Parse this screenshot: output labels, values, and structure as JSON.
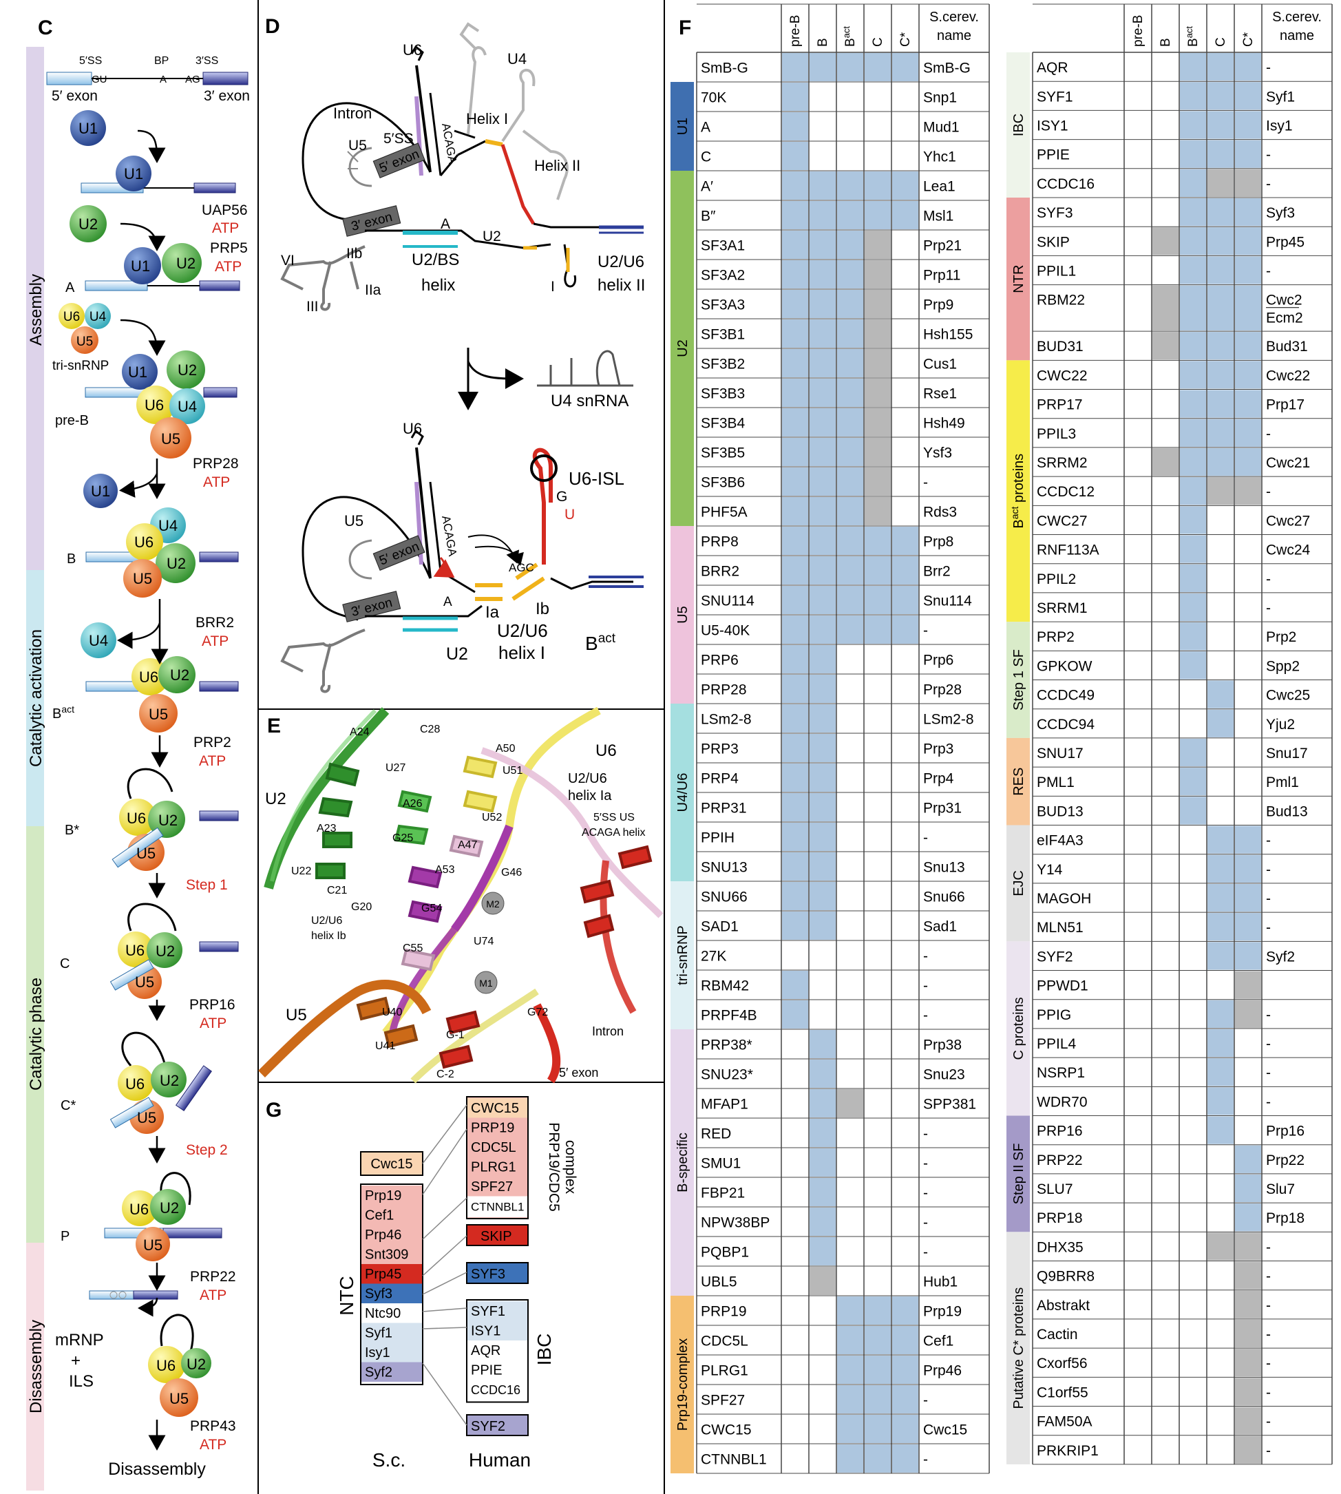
{
  "colors": {
    "blue": "#adc6df",
    "gray": "#b8b8b8",
    "red_text": "#d42a20",
    "u1": "#3a5fae",
    "u2": "#52b04c",
    "u4": "#58c2d0",
    "u5": "#f07a3a",
    "u6": "#f2e33a"
  },
  "panel_c": {
    "letter": "C",
    "header": {
      "ss5": "5′SS",
      "bp": "BP",
      "ss3": "3′SS",
      "gu": "GU",
      "a": "A",
      "ag": "AG",
      "exon5": "5′ exon",
      "exon3": "3′ exon"
    },
    "phases": [
      "Assembly",
      "Catalytic activation",
      "Catalytic phase",
      "Disassembly"
    ],
    "complexes": [
      "A",
      "tri-snRNP",
      "pre-B",
      "B",
      "B^act",
      "B*",
      "C",
      "C*",
      "P"
    ],
    "factors": [
      {
        "name": "UAP56",
        "atp": "ATP"
      },
      {
        "name": "PRP5",
        "atp": "ATP"
      },
      {
        "name": "PRP28",
        "atp": "ATP"
      },
      {
        "name": "BRR2",
        "atp": "ATP"
      },
      {
        "name": "PRP2",
        "atp": "ATP"
      },
      {
        "name": "PRP16",
        "atp": "ATP"
      },
      {
        "name": "PRP22",
        "atp": "ATP"
      },
      {
        "name": "PRP43",
        "atp": "ATP"
      }
    ],
    "steps": [
      "Step 1",
      "Step 2"
    ],
    "products": [
      "mRNP",
      "+",
      "ILS"
    ],
    "final": "Disassembly",
    "snrnps": {
      "u1": "U1",
      "u2": "U2",
      "u4": "U4",
      "u5": "U5",
      "u6": "U6"
    }
  },
  "panel_d": {
    "letter": "D",
    "labels": {
      "u6": "U6",
      "u4": "U4",
      "intron": "Intron",
      "helix1": "Helix I",
      "helix2": "Helix II",
      "ss5": "5′SS",
      "u5": "U5",
      "exon5": "5′ exon",
      "acaga": "ACAGA",
      "exon3": "3′ exon",
      "a": "A",
      "u2": "U2",
      "vi": "VI",
      "iib": "IIb",
      "iia": "IIa",
      "iii": "III",
      "i": "I",
      "u2bs": "U2/BS",
      "helix": "helix",
      "u2u6": "U2/U6",
      "helix_ii": "helix II",
      "u4snrna": "U4 snRNA",
      "u6isl": "U6-ISL",
      "g": "G",
      "u": "U",
      "ia": "Ia",
      "ib": "Ib",
      "helix_i": "helix I",
      "bact": "B",
      "bact_sup": "act",
      "agc": "AGC"
    }
  },
  "panel_e": {
    "letter": "E",
    "labels": [
      "A24",
      "C28",
      "A50",
      "U27",
      "U51",
      "A26",
      "U52",
      "A47",
      "G25",
      "A23",
      "A53",
      "G46",
      "U22",
      "C21",
      "G20",
      "G54",
      "M2",
      "C55",
      "U74",
      "M1",
      "U40",
      "G72",
      "U41",
      "G-1",
      "C-2"
    ],
    "names": {
      "u6": "U6",
      "u2u6a": "U2/U6",
      "helix_ia": "helix Ia",
      "ss5": "5′SS US",
      "acaga": "ACAGA helix",
      "u2": "U2",
      "u2u6b": "U2/U6",
      "helix_ib": "helix Ib",
      "u5": "U5",
      "intron": "Intron",
      "exon5": "5′ exon"
    }
  },
  "panel_g": {
    "letter": "G",
    "cwc15": "Cwc15",
    "ntc": "NTC",
    "ibc": "IBC",
    "sc_list": [
      "Prp19",
      "Cef1",
      "Prp46",
      "Snt309",
      "Prp45",
      "Syf3",
      "Ntc90",
      "Syf1",
      "Isy1",
      "Syf2"
    ],
    "human_complex": [
      "CWC15",
      "PRP19",
      "CDC5L",
      "PLRG1",
      "SPF27",
      "CTNNBL1"
    ],
    "complex_label_1": "PRP19/CDC5",
    "complex_label_2": "complex",
    "skip": "SKIP",
    "syf3": "SYF3",
    "ibc_list": [
      "SYF1",
      "ISY1",
      "AQR",
      "PPIE",
      "CCDC16"
    ],
    "syf2": "SYF2",
    "sc": "S.c.",
    "human": "Human"
  },
  "panel_f": {
    "letter": "F",
    "col_headers": [
      "pre-B",
      "B",
      "B^act",
      "C",
      "C*"
    ],
    "sc_header": [
      "S.cerev.",
      "name"
    ],
    "left": {
      "groups": [
        {
          "name": "U1",
          "color": "#3f6fb0",
          "start": 1,
          "end": 3
        },
        {
          "name": "U2",
          "color": "#8fc15c",
          "start": 4,
          "end": 15
        },
        {
          "name": "U5",
          "color": "#eec3dc",
          "start": 16,
          "end": 21
        },
        {
          "name": "U4/U6",
          "color": "#a5dfe0",
          "start": 22,
          "end": 27
        },
        {
          "name": "tri-snRNP",
          "color": "#dff0f4",
          "start": 28,
          "end": 32
        },
        {
          "name": "B-specific",
          "color": "#e6d7ec",
          "start": 33,
          "end": 41
        },
        {
          "name": "Prp19-complex",
          "color": "#f5bf70",
          "start": 42,
          "end": 47
        }
      ],
      "rows": [
        {
          "name": "SmB-G",
          "sc": "SmB-G",
          "cells": "bbbbb"
        },
        {
          "name": "70K",
          "sc": "Snp1",
          "cells": "b...."
        },
        {
          "name": "A",
          "sc": "Mud1",
          "cells": "b...."
        },
        {
          "name": "C",
          "sc": "Yhc1",
          "cells": "b...."
        },
        {
          "name": "A′",
          "sc": "Lea1",
          "cells": "bbbbb"
        },
        {
          "name": "B″",
          "sc": "Msl1",
          "cells": "bbbbb"
        },
        {
          "name": "SF3A1",
          "sc": "Prp21",
          "cells": "bbbg."
        },
        {
          "name": "SF3A2",
          "sc": "Prp11",
          "cells": "bbbg."
        },
        {
          "name": "SF3A3",
          "sc": "Prp9",
          "cells": "bbbg."
        },
        {
          "name": "SF3B1",
          "sc": "Hsh155",
          "cells": "bbbg."
        },
        {
          "name": "SF3B2",
          "sc": "Cus1",
          "cells": "bbbg."
        },
        {
          "name": "SF3B3",
          "sc": "Rse1",
          "cells": "bbbg."
        },
        {
          "name": "SF3B4",
          "sc": "Hsh49",
          "cells": "bbbg."
        },
        {
          "name": "SF3B5",
          "sc": "Ysf3",
          "cells": "bbbg."
        },
        {
          "name": "SF3B6",
          "sc": "-",
          "cells": "bbbg."
        },
        {
          "name": "PHF5A",
          "sc": "Rds3",
          "cells": "bbbg."
        },
        {
          "name": "PRP8",
          "sc": "Prp8",
          "cells": "bbbbb"
        },
        {
          "name": "BRR2",
          "sc": "Brr2",
          "cells": "bbbbb"
        },
        {
          "name": "SNU114",
          "sc": "Snu114",
          "cells": "bbbbb"
        },
        {
          "name": "U5-40K",
          "sc": "-",
          "cells": "bbbbb"
        },
        {
          "name": "PRP6",
          "sc": "Prp6",
          "cells": "bb..."
        },
        {
          "name": "PRP28",
          "sc": "Prp28",
          "cells": "bb..."
        },
        {
          "name": "LSm2-8",
          "sc": "LSm2-8",
          "cells": "bb..."
        },
        {
          "name": "PRP3",
          "sc": "Prp3",
          "cells": "bb..."
        },
        {
          "name": "PRP4",
          "sc": "Prp4",
          "cells": "bb..."
        },
        {
          "name": "PRP31",
          "sc": "Prp31",
          "cells": "bb..."
        },
        {
          "name": "PPIH",
          "sc": "-",
          "cells": "bb..."
        },
        {
          "name": "SNU13",
          "sc": "Snu13",
          "cells": "bb..."
        },
        {
          "name": "SNU66",
          "sc": "Snu66",
          "cells": "bb..."
        },
        {
          "name": "SAD1",
          "sc": "Sad1",
          "cells": "bb..."
        },
        {
          "name": "27K",
          "sc": "-",
          "cells": "....."
        },
        {
          "name": "RBM42",
          "sc": "-",
          "cells": "b...."
        },
        {
          "name": "PRPF4B",
          "sc": "-",
          "cells": "b...."
        },
        {
          "name": "PRP38*",
          "sc": "Prp38",
          "cells": ".b..."
        },
        {
          "name": "SNU23*",
          "sc": "Snu23",
          "cells": ".b..."
        },
        {
          "name": "MFAP1",
          "sc": "SPP381",
          "cells": ".bg.."
        },
        {
          "name": "RED",
          "sc": "-",
          "cells": ".b..."
        },
        {
          "name": "SMU1",
          "sc": "-",
          "cells": ".b..."
        },
        {
          "name": "FBP21",
          "sc": "-",
          "cells": ".b..."
        },
        {
          "name": "NPW38BP",
          "sc": "-",
          "cells": ".b..."
        },
        {
          "name": "PQBP1",
          "sc": "-",
          "cells": ".b..."
        },
        {
          "name": "UBL5",
          "sc": "Hub1",
          "cells": ".g..."
        },
        {
          "name": "PRP19",
          "sc": "Prp19",
          "cells": "..bbb"
        },
        {
          "name": "CDC5L",
          "sc": "Cef1",
          "cells": "..bbb"
        },
        {
          "name": "PLRG1",
          "sc": "Prp46",
          "cells": "..bbb"
        },
        {
          "name": "SPF27",
          "sc": "-",
          "cells": "..bbb"
        },
        {
          "name": "CWC15",
          "sc": "Cwc15",
          "cells": "..bbb"
        },
        {
          "name": "CTNNBL1",
          "sc": "-",
          "cells": "..bbb"
        }
      ]
    },
    "right": {
      "groups": [
        {
          "name": "IBC",
          "color": "#eef4ea",
          "start": 0,
          "end": 4
        },
        {
          "name": "NTR",
          "color": "#ec9f9f",
          "start": 5,
          "end": 9
        },
        {
          "name": "B^act proteins",
          "color": "#f6ec4a",
          "start": 10,
          "end": 18
        },
        {
          "name": "Step 1 SF",
          "color": "#d9ebc9",
          "start": 19,
          "end": 22
        },
        {
          "name": "RES",
          "color": "#f7c79a",
          "start": 23,
          "end": 25
        },
        {
          "name": "EJC",
          "color": "#e2e2e2",
          "start": 26,
          "end": 29
        },
        {
          "name": "C proteins",
          "color": "#ebe4ef",
          "start": 30,
          "end": 35
        },
        {
          "name": "Step II SF",
          "color": "#a49ac8",
          "start": 36,
          "end": 39
        },
        {
          "name": "Putative C* proteins",
          "color": "#e5e5e5",
          "start": 40,
          "end": 47
        }
      ],
      "rows": [
        {
          "name": "AQR",
          "sc": "-",
          "cells": "..bbb"
        },
        {
          "name": "SYF1",
          "sc": "Syf1",
          "cells": "..bbb"
        },
        {
          "name": "ISY1",
          "sc": "Isy1",
          "cells": "..bbb"
        },
        {
          "name": "PPIE",
          "sc": "-",
          "cells": "..bbb"
        },
        {
          "name": "CCDC16",
          "sc": "-",
          "cells": "..bgg"
        },
        {
          "name": "SYF3",
          "sc": "Syf3",
          "cells": "..bbb"
        },
        {
          "name": "SKIP",
          "sc": "Prp45",
          "cells": ".gbbb"
        },
        {
          "name": "PPIL1",
          "sc": "-",
          "cells": "..bbb"
        },
        {
          "name": "RBM22",
          "sc": "Cwc2",
          "sc2": "Ecm2",
          "cells": ".gbbb",
          "tall": true
        },
        {
          "name": "BUD31",
          "sc": "Bud31",
          "cells": ".gbbb"
        },
        {
          "name": "CWC22",
          "sc": "Cwc22",
          "cells": "..bbb"
        },
        {
          "name": "PRP17",
          "sc": "Prp17",
          "cells": "..bbb"
        },
        {
          "name": "PPIL3",
          "sc": "-",
          "cells": "..bbb"
        },
        {
          "name": "SRRM2",
          "sc": "Cwc21",
          "cells": ".gbbb"
        },
        {
          "name": "CCDC12",
          "sc": "-",
          "cells": "..bgg"
        },
        {
          "name": "CWC27",
          "sc": "Cwc27",
          "cells": "..b.."
        },
        {
          "name": "RNF113A",
          "sc": "Cwc24",
          "cells": "..b.."
        },
        {
          "name": "PPIL2",
          "sc": "-",
          "cells": "..b.."
        },
        {
          "name": "SRRM1",
          "sc": "-",
          "cells": "..b.."
        },
        {
          "name": "PRP2",
          "sc": "Prp2",
          "cells": "..b.."
        },
        {
          "name": "GPKOW",
          "sc": "Spp2",
          "cells": "..b.."
        },
        {
          "name": "CCDC49",
          "sc": "Cwc25",
          "cells": "...b."
        },
        {
          "name": "CCDC94",
          "sc": "Yju2",
          "cells": "...b."
        },
        {
          "name": "SNU17",
          "sc": "Snu17",
          "cells": "..b.."
        },
        {
          "name": "PML1",
          "sc": "Pml1",
          "cells": "..b.."
        },
        {
          "name": "BUD13",
          "sc": "Bud13",
          "cells": "..b.."
        },
        {
          "name": "eIF4A3",
          "sc": "-",
          "cells": "...bb"
        },
        {
          "name": "Y14",
          "sc": "-",
          "cells": "...bb"
        },
        {
          "name": "MAGOH",
          "sc": "-",
          "cells": "...bb"
        },
        {
          "name": "MLN51",
          "sc": "-",
          "cells": "...bb"
        },
        {
          "name": "SYF2",
          "sc": "Syf2",
          "cells": "...bb"
        },
        {
          "name": "PPWD1",
          "sc": "",
          "cells": "....g"
        },
        {
          "name": "PPIG",
          "sc": "-",
          "cells": "...bg"
        },
        {
          "name": "PPIL4",
          "sc": "-",
          "cells": "...b."
        },
        {
          "name": "NSRP1",
          "sc": "-",
          "cells": "...b."
        },
        {
          "name": "WDR70",
          "sc": "-",
          "cells": "...b."
        },
        {
          "name": "PRP16",
          "sc": "Prp16",
          "cells": "...b."
        },
        {
          "name": "PRP22",
          "sc": "Prp22",
          "cells": "....b"
        },
        {
          "name": "SLU7",
          "sc": "Slu7",
          "cells": "....b"
        },
        {
          "name": "PRP18",
          "sc": "Prp18",
          "cells": "....b"
        },
        {
          "name": "DHX35",
          "sc": "-",
          "cells": "...gg"
        },
        {
          "name": "Q9BRR8",
          "sc": "-",
          "cells": "....g"
        },
        {
          "name": "Abstrakt",
          "sc": "-",
          "cells": "....g"
        },
        {
          "name": "Cactin",
          "sc": "-",
          "cells": "....g"
        },
        {
          "name": "Cxorf56",
          "sc": "-",
          "cells": "....g"
        },
        {
          "name": "C1orf55",
          "sc": "-",
          "cells": "....g"
        },
        {
          "name": "FAM50A",
          "sc": "-",
          "cells": "....g"
        },
        {
          "name": "PRKRIP1",
          "sc": "-",
          "cells": "....g"
        }
      ]
    }
  }
}
